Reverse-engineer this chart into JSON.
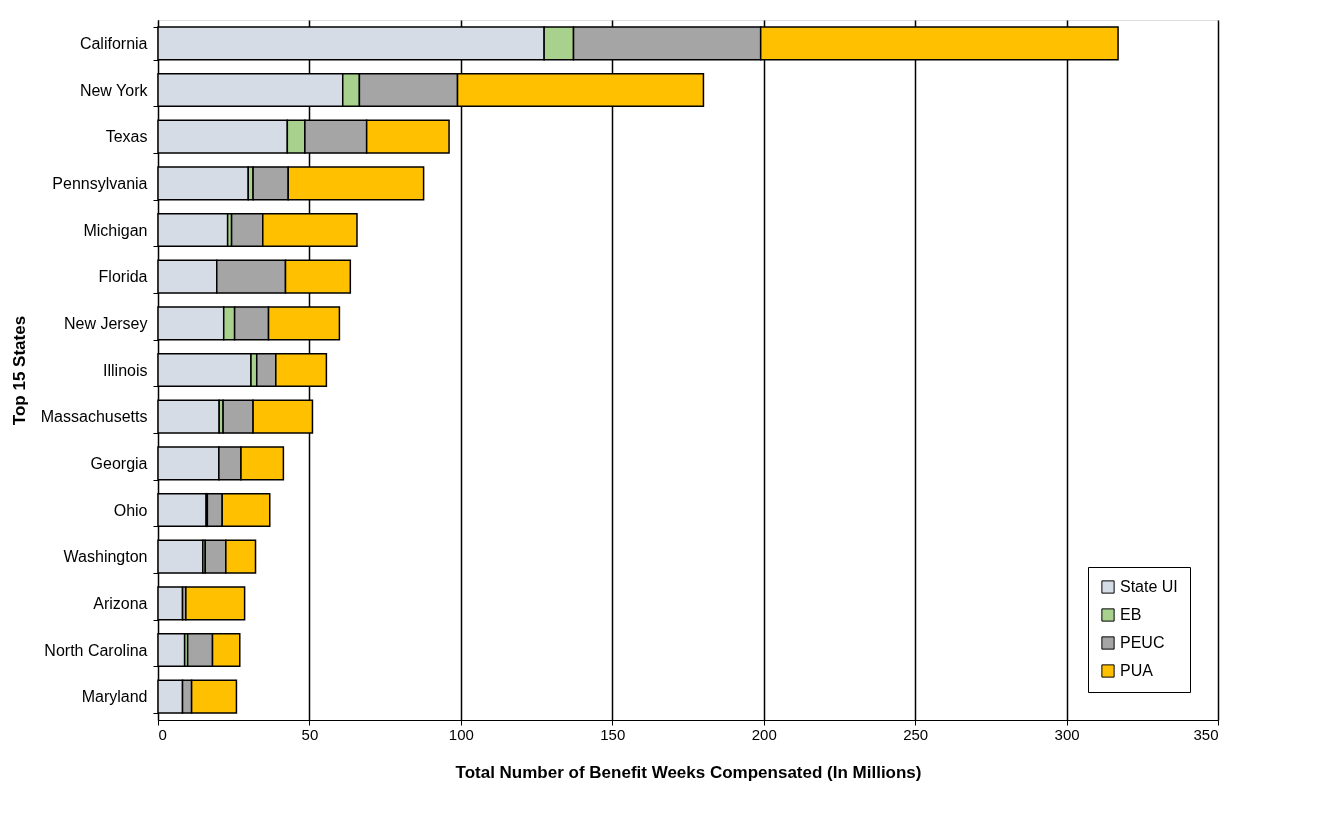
{
  "chart_data": {
    "type": "bar",
    "orientation": "horizontal",
    "stacked": true,
    "xlabel": "Total Number of Benefit Weeks Compensated (In Millions)",
    "ylabel": "Top 15 States",
    "categories": [
      "California",
      "New York",
      "Texas",
      "Pennsylvania",
      "Michigan",
      "Florida",
      "New Jersey",
      "Illinois",
      "Massachusetts",
      "Georgia",
      "Ohio",
      "Washington",
      "Arizona",
      "North Carolina",
      "Maryland"
    ],
    "series": [
      {
        "name": "State UI",
        "color": "#d6dce5",
        "values": [
          127.5,
          61,
          42.7,
          29.8,
          23,
          19.4,
          21.7,
          30.7,
          20.2,
          20.1,
          15.9,
          14.8,
          8.1,
          8.8,
          8.1
        ]
      },
      {
        "name": "EB",
        "color": "#a9d18e",
        "values": [
          9.7,
          5.5,
          5.8,
          1.6,
          1.3,
          null,
          3.6,
          1.9,
          1.3,
          null,
          0.4,
          0.8,
          null,
          1.0,
          null
        ]
      },
      {
        "name": "PEUC",
        "color": "#a5a5a5",
        "values": [
          61.8,
          32.4,
          20.4,
          11.6,
          10.3,
          22.7,
          11.2,
          6.3,
          9.9,
          7.3,
          4.9,
          6.8,
          1.1,
          8.2,
          3.0
        ]
      },
      {
        "name": "PUA",
        "color": "#ffc000",
        "values": [
          118,
          81.2,
          27.2,
          44.7,
          31.1,
          21.4,
          23.4,
          16.7,
          19.6,
          14.0,
          15.7,
          9.8,
          19.4,
          9.0,
          14.8
        ]
      }
    ],
    "xlim": [
      0,
      350
    ],
    "xticks": [
      0,
      50,
      100,
      150,
      200,
      250,
      300,
      350
    ],
    "grid": "x",
    "legend": "bottom right"
  }
}
